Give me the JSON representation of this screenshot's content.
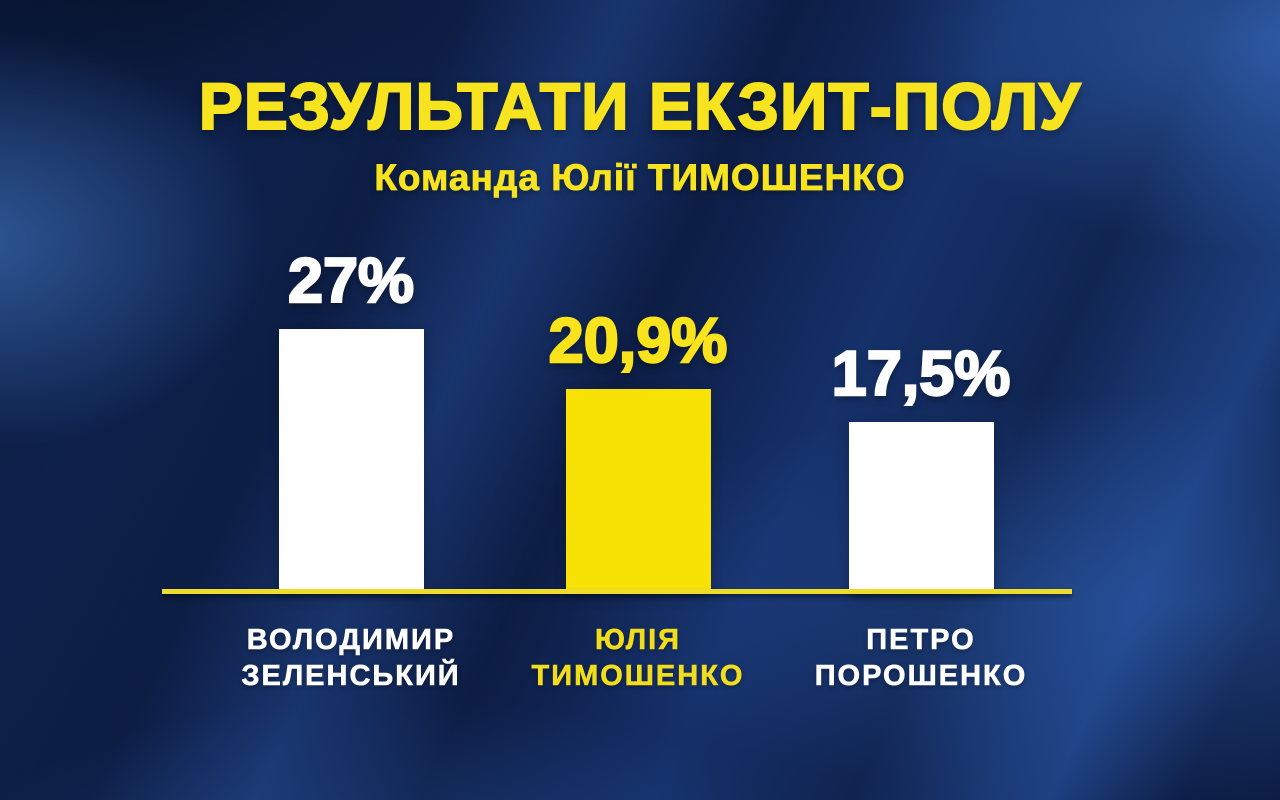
{
  "title": "РЕЗУЛЬТАТИ ЕКЗИТ-ПОЛУ",
  "subtitle": "Команда Юлії ТИМОШЕНКО",
  "colors": {
    "accent_yellow": "#f7e31e",
    "bar_yellow": "#f8e104",
    "bar_white": "#ffffff",
    "baseline_yellow": "#eedc2c",
    "background_navy": "#122a5c"
  },
  "chart_data": {
    "type": "bar",
    "title": "РЕЗУЛЬТАТИ ЕКЗИТ-ПОЛУ",
    "subtitle": "Команда Юлії ТИМОШЕНКО",
    "categories": [
      "ВОЛОДИМИР ЗЕЛЕНСЬКИЙ",
      "ЮЛІЯ ТИМОШЕНКО",
      "ПЕТРО ПОРОШЕНКО"
    ],
    "values": [
      27,
      20.9,
      17.5
    ],
    "value_labels": [
      "27%",
      "20,9%",
      "17,5%"
    ],
    "ylim": [
      0,
      30
    ],
    "grid": false,
    "legend": false,
    "bars": [
      {
        "name_lines": [
          "ВОЛОДИМИР",
          "ЗЕЛЕНСЬКИЙ"
        ],
        "value": 27,
        "value_label": "27%",
        "bar_color": "#ffffff",
        "value_color": "#ffffff",
        "label_color": "#ffffff"
      },
      {
        "name_lines": [
          "ЮЛІЯ",
          "ТИМОШЕНКО"
        ],
        "value": 20.9,
        "value_label": "20,9%",
        "bar_color": "#f8e104",
        "value_color": "#f8e31c",
        "label_color": "#f2dd1d"
      },
      {
        "name_lines": [
          "ПЕТРО",
          "ПОРОШЕНКО"
        ],
        "value": 17.5,
        "value_label": "17,5%",
        "bar_color": "#ffffff",
        "value_color": "#ffffff",
        "label_color": "#ffffff"
      }
    ]
  }
}
